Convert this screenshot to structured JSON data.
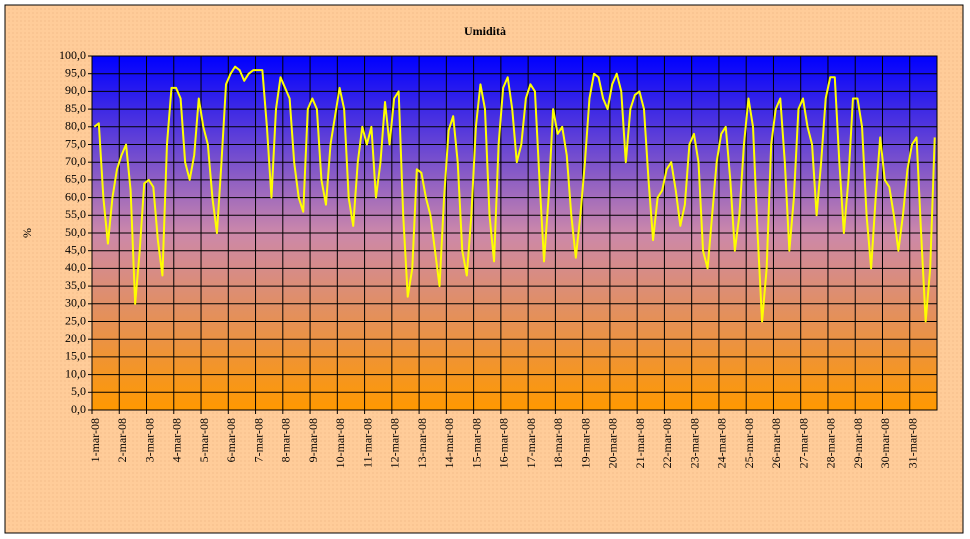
{
  "chart_data": {
    "type": "line",
    "title": "Umidità",
    "y_label": "%",
    "categories": [
      "1-mar-08",
      null,
      null,
      null,
      null,
      null,
      "2-mar-08",
      null,
      null,
      null,
      null,
      null,
      "3-mar-08",
      null,
      null,
      null,
      null,
      null,
      "4-mar-08",
      null,
      null,
      null,
      null,
      null,
      "5-mar-08",
      null,
      null,
      null,
      null,
      null,
      "6-mar-08",
      null,
      null,
      null,
      null,
      null,
      "7-mar-08",
      null,
      null,
      null,
      null,
      null,
      "8-mar-08",
      null,
      null,
      null,
      null,
      null,
      "9-mar-08",
      null,
      null,
      null,
      null,
      null,
      "10-mar-08",
      null,
      null,
      null,
      null,
      null,
      "11-mar-08",
      null,
      null,
      null,
      null,
      null,
      "12-mar-08",
      null,
      null,
      null,
      null,
      null,
      "13-mar-08",
      null,
      null,
      null,
      null,
      null,
      "14-mar-08",
      null,
      null,
      null,
      null,
      null,
      "15-mar-08",
      null,
      null,
      null,
      null,
      null,
      "16-mar-08",
      null,
      null,
      null,
      null,
      null,
      "17-mar-08",
      null,
      null,
      null,
      null,
      null,
      "18-mar-08",
      null,
      null,
      null,
      null,
      null,
      "19-mar-08",
      null,
      null,
      null,
      null,
      null,
      "20-mar-08",
      null,
      null,
      null,
      null,
      null,
      "21-mar-08",
      null,
      null,
      null,
      null,
      null,
      "22-mar-08",
      null,
      null,
      null,
      null,
      null,
      "23-mar-08",
      null,
      null,
      null,
      null,
      null,
      "24-mar-08",
      null,
      null,
      null,
      null,
      null,
      "25-mar-08",
      null,
      null,
      null,
      null,
      null,
      "26-mar-08",
      null,
      null,
      null,
      null,
      null,
      "27-mar-08",
      null,
      null,
      null,
      null,
      null,
      "28-mar-08",
      null,
      null,
      null,
      null,
      null,
      "29-mar-08",
      null,
      null,
      null,
      null,
      null,
      "30-mar-08",
      null,
      null,
      null,
      null,
      null,
      "31-mar-08",
      null,
      null,
      null,
      null,
      null
    ],
    "series": [
      {
        "name": "Umidità",
        "color": "#ffff00",
        "values": [
          80,
          81,
          60,
          47,
          60,
          68,
          72,
          75,
          62,
          30,
          45,
          64,
          65,
          63,
          48,
          38,
          75,
          91,
          91,
          88,
          70,
          65,
          72,
          88,
          80,
          75,
          60,
          50,
          70,
          92,
          95,
          97,
          96,
          93,
          95,
          96,
          96,
          96,
          80,
          60,
          85,
          94,
          91,
          88,
          70,
          60,
          56,
          85,
          88,
          85,
          65,
          58,
          75,
          83,
          91,
          85,
          60,
          52,
          70,
          80,
          75,
          80,
          60,
          70,
          87,
          75,
          88,
          90,
          55,
          32,
          40,
          68,
          67,
          60,
          55,
          45,
          35,
          60,
          79,
          83,
          70,
          45,
          38,
          55,
          80,
          92,
          85,
          55,
          42,
          75,
          91,
          94,
          85,
          70,
          75,
          88,
          92,
          90,
          65,
          42,
          60,
          85,
          78,
          80,
          72,
          55,
          43,
          55,
          70,
          88,
          95,
          94,
          88,
          85,
          92,
          95,
          90,
          70,
          85,
          89,
          90,
          85,
          65,
          48,
          60,
          62,
          68,
          70,
          62,
          52,
          58,
          75,
          78,
          70,
          45,
          40,
          55,
          70,
          78,
          80,
          65,
          45,
          55,
          75,
          88,
          80,
          50,
          25,
          40,
          75,
          85,
          88,
          70,
          45,
          60,
          85,
          88,
          80,
          75,
          55,
          70,
          88,
          94,
          94,
          70,
          50,
          65,
          88,
          88,
          80,
          55,
          40,
          60,
          77,
          65,
          63,
          55,
          45,
          55,
          68,
          75,
          77,
          50,
          25,
          40,
          77
        ]
      }
    ],
    "ylim": [
      0,
      100
    ],
    "yticks": [
      {
        "value": 0,
        "label": "0,0"
      },
      {
        "value": 5,
        "label": "5,0"
      },
      {
        "value": 10,
        "label": "10,0"
      },
      {
        "value": 15,
        "label": "15,0"
      },
      {
        "value": 20,
        "label": "20,0"
      },
      {
        "value": 25,
        "label": "25,0"
      },
      {
        "value": 30,
        "label": "30,0"
      },
      {
        "value": 35,
        "label": "35,0"
      },
      {
        "value": 40,
        "label": "40,0"
      },
      {
        "value": 45,
        "label": "45,0"
      },
      {
        "value": 50,
        "label": "50,0"
      },
      {
        "value": 55,
        "label": "55,0"
      },
      {
        "value": 60,
        "label": "60,0"
      },
      {
        "value": 65,
        "label": "65,0"
      },
      {
        "value": 70,
        "label": "70,0"
      },
      {
        "value": 75,
        "label": "75,0"
      },
      {
        "value": 80,
        "label": "80,0"
      },
      {
        "value": 85,
        "label": "85,0"
      },
      {
        "value": 90,
        "label": "90,0"
      },
      {
        "value": 95,
        "label": "95,0"
      },
      {
        "value": 100,
        "label": "100,0"
      }
    ],
    "grid": true
  }
}
